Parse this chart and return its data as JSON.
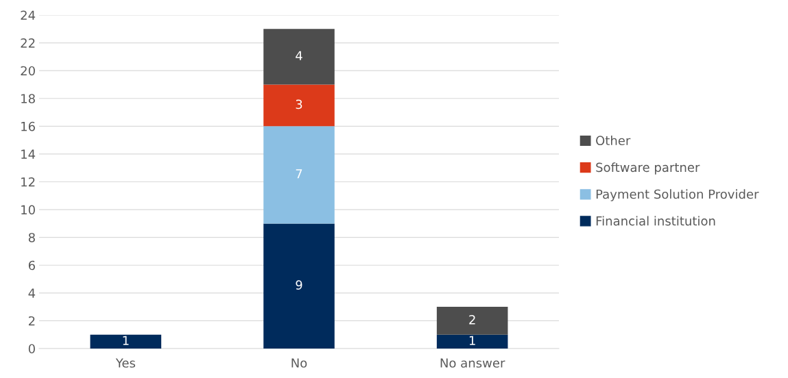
{
  "chart_data": {
    "type": "bar",
    "stacked": true,
    "categories": [
      "Yes",
      "No",
      "No answer"
    ],
    "series": [
      {
        "name": "Financial institution",
        "color": "#002b5c",
        "values": [
          1,
          9,
          1
        ],
        "value_labels": [
          "1",
          "9",
          "1"
        ]
      },
      {
        "name": "Payment Solution Provider",
        "color": "#8bbfe3",
        "values": [
          0,
          7,
          0
        ],
        "value_labels": [
          null,
          "7",
          null
        ]
      },
      {
        "name": "Software partner",
        "color": "#dc3a1a",
        "values": [
          0,
          3,
          0
        ],
        "value_labels": [
          null,
          "3",
          null
        ]
      },
      {
        "name": "Other",
        "color": "#4d4d4d",
        "values": [
          0,
          4,
          2
        ],
        "value_labels": [
          null,
          "4",
          "2"
        ]
      }
    ],
    "ylim": [
      0,
      24
    ],
    "yticks": [
      0,
      2,
      4,
      6,
      8,
      10,
      12,
      14,
      16,
      18,
      20,
      22,
      24
    ],
    "grid": "y",
    "legend": "right"
  }
}
